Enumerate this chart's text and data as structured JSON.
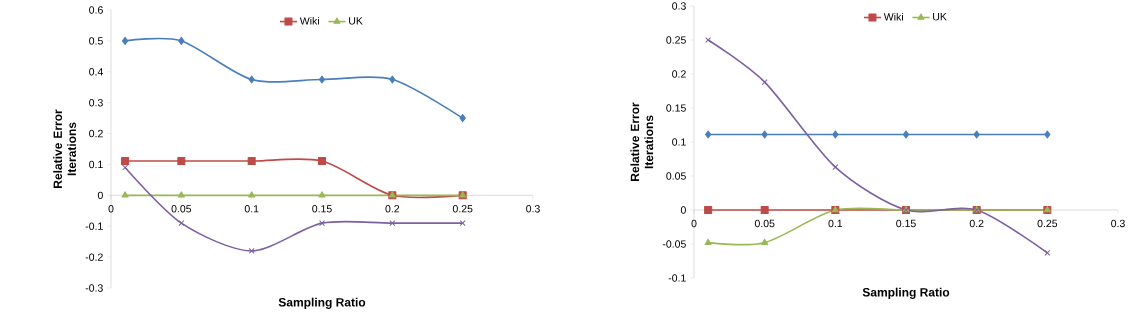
{
  "chart_data": [
    {
      "type": "line",
      "xlabel": "Sampling Ratio",
      "ylabel": "Relative Error Iterations",
      "x": [
        0.01,
        0.05,
        0.1,
        0.15,
        0.2,
        0.25
      ],
      "series": [
        {
          "color": "#4a7ebb",
          "marker": "diamond",
          "values": [
            0.5,
            0.5,
            0.375,
            0.375,
            0.375,
            0.25
          ]
        },
        {
          "name": "Wiki",
          "color": "#be4b48",
          "marker": "square",
          "values": [
            0.111,
            0.111,
            0.111,
            0.111,
            0,
            0
          ]
        },
        {
          "name": "UK",
          "color": "#98b954",
          "marker": "triangle",
          "values": [
            0,
            0,
            0,
            0,
            0,
            0
          ]
        },
        {
          "color": "#7d60a0",
          "marker": "cross",
          "values": [
            0.09,
            -0.09,
            -0.18,
            -0.09,
            -0.09,
            -0.09
          ]
        }
      ],
      "xlim": [
        0,
        0.3
      ],
      "xticks": [
        0,
        0.05,
        0.1,
        0.15,
        0.2,
        0.25,
        0.3
      ],
      "ylim": [
        -0.3,
        0.6
      ],
      "yticks": [
        -0.3,
        -0.2,
        -0.1,
        0,
        0.1,
        0.2,
        0.3,
        0.4,
        0.5,
        0.6
      ],
      "legend": "top",
      "grid": false
    },
    {
      "type": "line",
      "xlabel": "Sampling Ratio",
      "ylabel": "Relative Error Iterations",
      "x": [
        0.01,
        0.05,
        0.1,
        0.15,
        0.2,
        0.25
      ],
      "series": [
        {
          "color": "#4a7ebb",
          "marker": "diamond",
          "values": [
            0.111,
            0.111,
            0.111,
            0.111,
            0.111,
            0.111
          ]
        },
        {
          "name": "Wiki",
          "color": "#be4b48",
          "marker": "square",
          "values": [
            0,
            0,
            0,
            0,
            0,
            0
          ]
        },
        {
          "name": "UK",
          "color": "#98b954",
          "marker": "triangle",
          "values": [
            -0.048,
            -0.048,
            0,
            0,
            0,
            0
          ]
        },
        {
          "color": "#7d60a0",
          "marker": "cross",
          "values": [
            0.25,
            0.188,
            0.063,
            0,
            0,
            -0.063
          ]
        }
      ],
      "xlim": [
        0,
        0.3
      ],
      "xticks": [
        0,
        0.05,
        0.1,
        0.15,
        0.2,
        0.25,
        0.3
      ],
      "ylim": [
        -0.1,
        0.3
      ],
      "yticks": [
        -0.1,
        -0.05,
        0,
        0.05,
        0.1,
        0.15,
        0.2,
        0.25,
        0.3
      ],
      "legend": "top",
      "grid": false
    }
  ]
}
